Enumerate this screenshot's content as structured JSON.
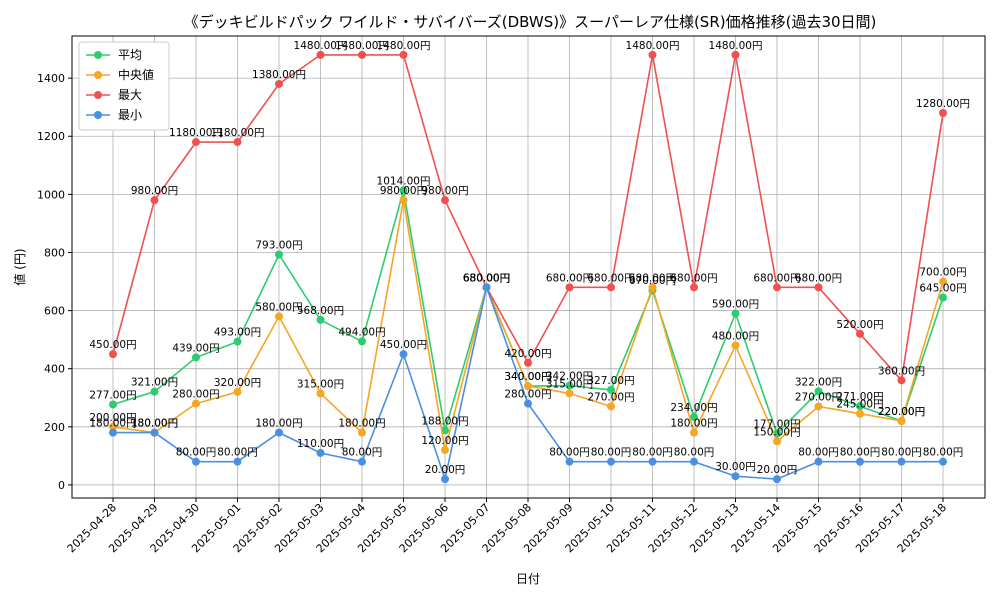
{
  "chart_data": {
    "type": "line",
    "title": "《デッキビルドパック ワイルド・サバイバーズ(DBWS)》スーパーレア仕様(SR)価格推移(過去30日間)",
    "xlabel": "日付",
    "ylabel": "値 (円)",
    "ylim": [
      -45,
      1545
    ],
    "yticks": [
      0,
      200,
      400,
      600,
      800,
      1000,
      1200,
      1400
    ],
    "grid": true,
    "legend_position": "top-left",
    "value_suffix": "円",
    "categories": [
      "2025-04-28",
      "2025-04-29",
      "2025-04-30",
      "2025-05-01",
      "2025-05-02",
      "2025-05-03",
      "2025-05-04",
      "2025-05-05",
      "2025-05-06",
      "2025-05-07",
      "2025-05-08",
      "2025-05-09",
      "2025-05-10",
      "2025-05-11",
      "2025-05-12",
      "2025-05-13",
      "2025-05-14",
      "2025-05-15",
      "2025-05-16",
      "2025-05-17",
      "2025-05-18"
    ],
    "series": [
      {
        "name": "平均",
        "color": "#2ecc71",
        "values": [
          277,
          321,
          439,
          493,
          793,
          568,
          494,
          1014,
          188,
          680,
          340,
          342,
          327,
          670,
          234,
          590,
          177,
          322,
          271,
          220,
          645
        ]
      },
      {
        "name": "中央値",
        "color": "#f5a623",
        "values": [
          200,
          180,
          280,
          320,
          580,
          315,
          180,
          980,
          120,
          680,
          340,
          315,
          270,
          680,
          180,
          480,
          150,
          270,
          245,
          220,
          700
        ]
      },
      {
        "name": "最大",
        "color": "#f05050",
        "values": [
          450,
          980,
          1180,
          1180,
          1380,
          1480,
          1480,
          1480,
          980,
          680,
          420,
          680,
          680,
          1480,
          680,
          1480,
          680,
          680,
          520,
          360,
          1280
        ]
      },
      {
        "name": "最小",
        "color": "#4a90e2",
        "values": [
          180,
          180,
          80,
          80,
          180,
          110,
          80,
          450,
          20,
          680,
          280,
          80,
          80,
          80,
          80,
          30,
          20,
          80,
          80,
          80,
          80
        ]
      }
    ]
  }
}
